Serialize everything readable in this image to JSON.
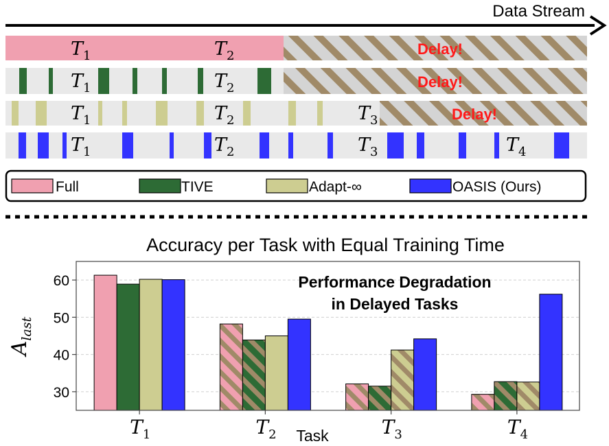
{
  "timeline": {
    "stream_label": "Data Stream",
    "delay_label": "Delay!",
    "task_labels": [
      "T",
      "T",
      "T",
      "T"
    ],
    "task_subscripts": [
      "1",
      "2",
      "3",
      "4"
    ]
  },
  "legend": {
    "items": [
      {
        "label": "Full",
        "color": "#f0a0b0"
      },
      {
        "label": "TIVE",
        "color": "#2d6b35"
      },
      {
        "label": "Adapt-∞",
        "color": "#cdcd91"
      },
      {
        "label": "OASIS (Ours)",
        "color": "#3333ff"
      }
    ]
  },
  "colors": {
    "full": "#f0a0b0",
    "tive": "#2d6b35",
    "adapt": "#cdcd91",
    "oasis": "#3333ff",
    "hatch": "#a08a68",
    "delay_text": "#ff1a1a",
    "strip_bg": "#e9e9e9"
  },
  "chart_data": {
    "type": "bar",
    "title": "Accuracy per Task with Equal Training Time",
    "annotation": [
      "Performance Degradation",
      "in Delayed Tasks"
    ],
    "xlabel": "Task",
    "ylabel": "A",
    "ylabel_sub": "last",
    "categories": [
      "T1",
      "T2",
      "T3",
      "T4"
    ],
    "category_main": [
      "T",
      "T",
      "T",
      "T"
    ],
    "category_sub": [
      "1",
      "2",
      "3",
      "4"
    ],
    "ylim": [
      25,
      65
    ],
    "yticks": [
      30,
      40,
      50,
      60
    ],
    "grid": true,
    "series": [
      {
        "name": "Full",
        "values": [
          61.3,
          48.2,
          32.1,
          29.3
        ],
        "delayed": [
          false,
          true,
          true,
          true
        ]
      },
      {
        "name": "TIVE",
        "values": [
          58.9,
          43.9,
          31.5,
          32.7
        ],
        "delayed": [
          false,
          true,
          true,
          true
        ]
      },
      {
        "name": "Adapt-∞",
        "values": [
          60.2,
          45.0,
          41.2,
          32.6
        ],
        "delayed": [
          false,
          false,
          true,
          true
        ]
      },
      {
        "name": "OASIS (Ours)",
        "values": [
          60.1,
          49.5,
          44.2,
          56.2
        ],
        "delayed": [
          false,
          false,
          false,
          false
        ]
      }
    ]
  }
}
